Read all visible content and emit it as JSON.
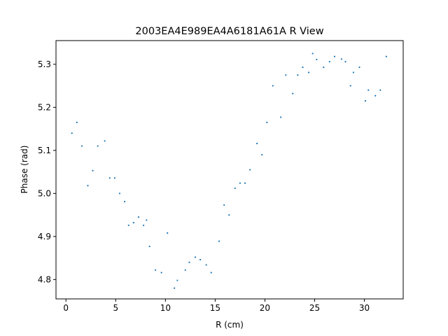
{
  "chart_data": {
    "type": "scatter",
    "title": "2003EA4E989EA4A6181A61A R View",
    "xlabel": "R (cm)",
    "ylabel": "Phase (rad)",
    "xlim": [
      -1.0,
      33.9
    ],
    "ylim": [
      4.755,
      5.355
    ],
    "x_ticks": [
      0,
      5,
      10,
      15,
      20,
      25,
      30
    ],
    "y_ticks": [
      4.8,
      4.9,
      5.0,
      5.1,
      5.2,
      5.3
    ],
    "x_tick_labels": [
      "0",
      "5",
      "10",
      "15",
      "20",
      "25",
      "30"
    ],
    "y_tick_labels": [
      "4.8",
      "4.9",
      "5.0",
      "5.1",
      "5.2",
      "5.3"
    ],
    "grid": false,
    "point_color": "#1f77b4",
    "series": [
      {
        "x": [
          0.6,
          1.1,
          1.6,
          2.2,
          2.7,
          3.2,
          3.9,
          4.4,
          4.9,
          5.4,
          5.9,
          6.3,
          6.8,
          7.3,
          7.8,
          8.1,
          8.4,
          9.0,
          9.6,
          10.2,
          10.9,
          11.2,
          12.0,
          12.4,
          13.0,
          13.5,
          14.1,
          14.6,
          15.4,
          15.9,
          16.4,
          17.0,
          17.5,
          18.0,
          18.5,
          19.2,
          19.7,
          20.2,
          20.8,
          21.6,
          22.1,
          22.8,
          23.3,
          23.8,
          24.4,
          24.8,
          25.2,
          25.9,
          26.5,
          27.0,
          27.7,
          28.1,
          28.6,
          28.9,
          29.5,
          30.1,
          30.4,
          31.1,
          31.6,
          32.2
        ],
        "y": [
          5.14,
          5.165,
          5.11,
          5.018,
          5.053,
          5.11,
          5.122,
          5.036,
          5.036,
          5.0,
          4.981,
          4.926,
          4.932,
          4.945,
          4.926,
          4.938,
          4.877,
          4.822,
          4.816,
          4.908,
          4.78,
          4.798,
          4.822,
          4.84,
          4.852,
          4.846,
          4.834,
          4.816,
          4.889,
          4.973,
          4.95,
          5.012,
          5.024,
          5.024,
          5.055,
          5.116,
          5.09,
          5.165,
          5.25,
          5.177,
          5.275,
          5.232,
          5.275,
          5.293,
          5.281,
          5.325,
          5.311,
          5.293,
          5.306,
          5.318,
          5.312,
          5.306,
          5.25,
          5.281,
          5.293,
          5.215,
          5.24,
          5.227,
          5.24,
          5.318
        ]
      }
    ]
  }
}
